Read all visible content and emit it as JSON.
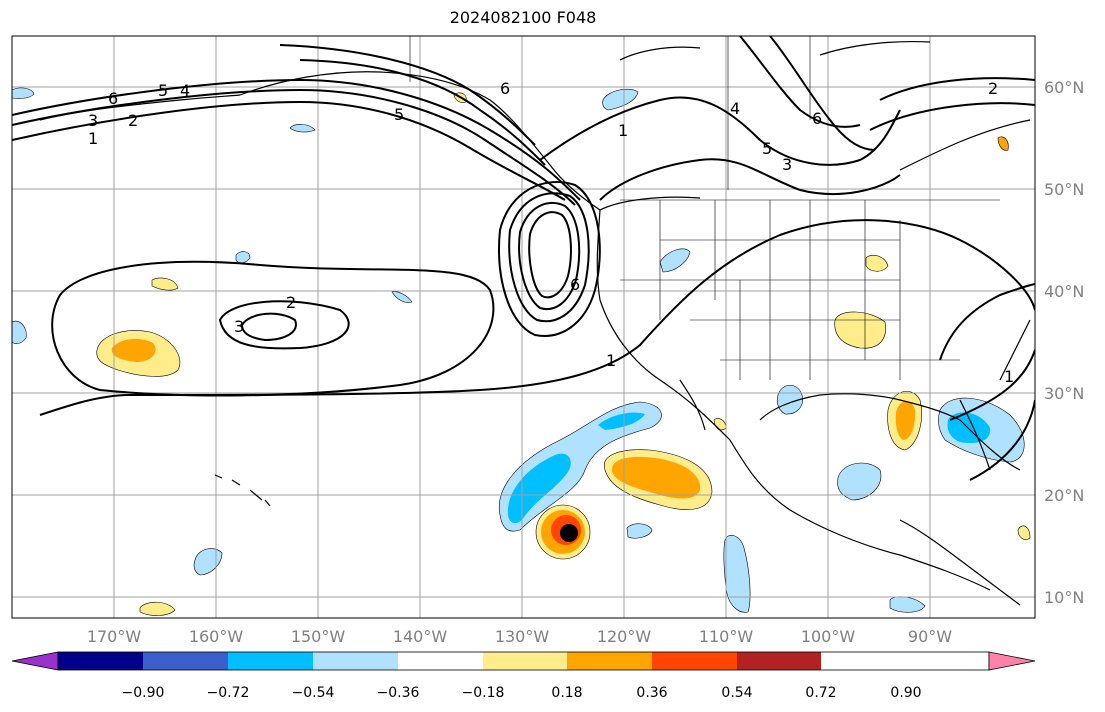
{
  "title": "2024082100 F048",
  "lat_labels": [
    "60°N",
    "50°N",
    "40°N",
    "30°N",
    "20°N",
    "10°N"
  ],
  "lon_labels": [
    "170°W",
    "160°W",
    "150°W",
    "140°W",
    "130°W",
    "120°W",
    "110°W",
    "100°W",
    "90°W"
  ],
  "colorbar": {
    "labels": [
      "−0.90",
      "−0.72",
      "−0.54",
      "−0.36",
      "−0.18",
      "0.18",
      "0.36",
      "0.54",
      "0.72",
      "0.90"
    ],
    "colors": [
      "#9932cc",
      "#00008b",
      "#3a5fcd",
      "#00bfff",
      "#b0e2ff",
      "#ffffff",
      "#ffec8b",
      "#ffa500",
      "#ff4500",
      "#b22222",
      "#ff82ab"
    ]
  },
  "contour_labels": [
    "6",
    "3",
    "2",
    "1",
    "5",
    "4",
    "6",
    "1",
    "6",
    "5",
    "3",
    "4",
    "2",
    "3",
    "6",
    "5",
    "1",
    "2",
    "1"
  ],
  "storm_marker": "black-dot"
}
